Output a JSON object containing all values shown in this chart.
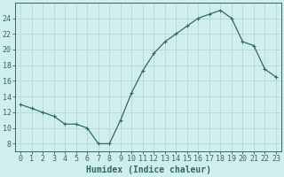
{
  "x": [
    0,
    1,
    2,
    3,
    4,
    5,
    6,
    7,
    8,
    9,
    10,
    11,
    12,
    13,
    14,
    15,
    16,
    17,
    18,
    19,
    20,
    21,
    22,
    23
  ],
  "y": [
    13,
    12.5,
    12,
    11.5,
    10.5,
    10.5,
    10,
    8,
    8,
    11,
    14.5,
    17.3,
    19.5,
    21,
    22,
    23,
    24,
    24.5,
    25,
    24,
    21,
    20.5,
    17.5,
    16.5
  ],
  "line_color": "#2e6b5e",
  "marker": "+",
  "marker_size": 3,
  "marker_lw": 0.8,
  "bg_color": "#d0eeee",
  "grid_color": "#b8dada",
  "xlabel": "Humidex (Indice chaleur)",
  "xlim": [
    -0.5,
    23.5
  ],
  "ylim": [
    7,
    26
  ],
  "yticks": [
    8,
    10,
    12,
    14,
    16,
    18,
    20,
    22,
    24
  ],
  "xticks": [
    0,
    1,
    2,
    3,
    4,
    5,
    6,
    7,
    8,
    9,
    10,
    11,
    12,
    13,
    14,
    15,
    16,
    17,
    18,
    19,
    20,
    21,
    22,
    23
  ],
  "tick_color": "#2e6b5e",
  "label_color": "#2e6b5e",
  "font_size_label": 7,
  "font_size_tick": 6,
  "line_width": 0.9
}
